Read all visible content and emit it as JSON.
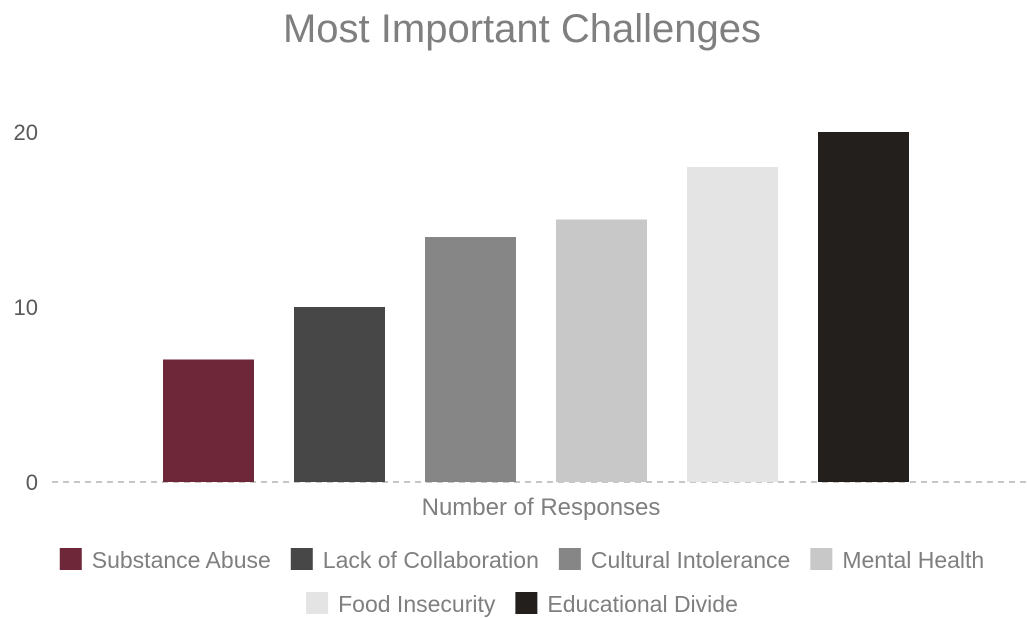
{
  "chart_data": {
    "type": "bar",
    "title": "Most Important Challenges",
    "xlabel": "Number of Responses",
    "ylabel": "",
    "ylim": [
      0,
      20
    ],
    "yticks": [
      0,
      10,
      20
    ],
    "grid": false,
    "legend_position": "bottom",
    "categories": [
      "Number of Responses"
    ],
    "series": [
      {
        "name": "Substance Abuse",
        "values": [
          7
        ],
        "color": "#6e2639"
      },
      {
        "name": "Lack of Collaboration",
        "values": [
          10
        ],
        "color": "#474747"
      },
      {
        "name": "Cultural Intolerance",
        "values": [
          14
        ],
        "color": "#868686"
      },
      {
        "name": "Mental Health",
        "values": [
          15
        ],
        "color": "#c8c8c8"
      },
      {
        "name": "Food Insecurity",
        "values": [
          18
        ],
        "color": "#e4e4e4"
      },
      {
        "name": "Educational Divide",
        "values": [
          20
        ],
        "color": "#231f1c"
      }
    ]
  }
}
